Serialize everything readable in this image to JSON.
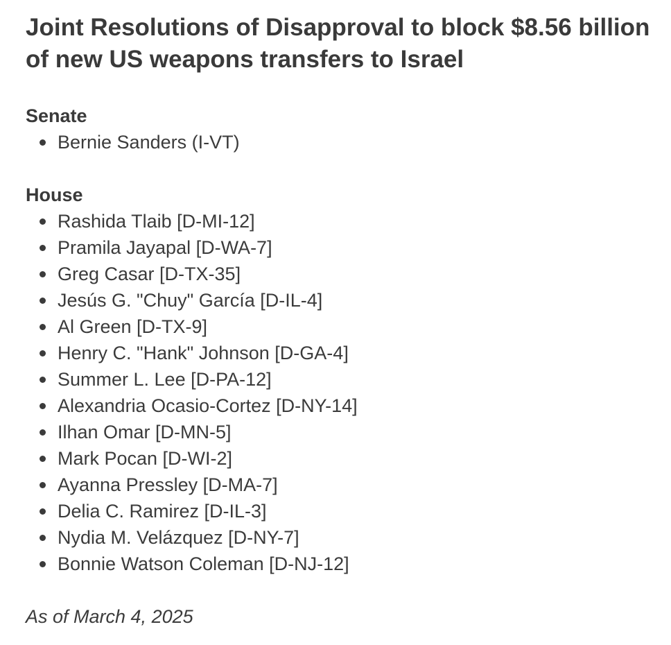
{
  "title": "Joint Resolutions of Disapproval to block $8.56 billion of new US weapons transfers to Israel",
  "sections": [
    {
      "heading": "Senate",
      "members": [
        "Bernie Sanders (I-VT)"
      ]
    },
    {
      "heading": "House",
      "members": [
        "Rashida Tlaib [D-MI-12]",
        "Pramila Jayapal [D-WA-7]",
        "Greg Casar [D-TX-35]",
        "Jesús G. \"Chuy\" García [D-IL-4]",
        "Al Green [D-TX-9]",
        "Henry C. \"Hank\" Johnson [D-GA-4]",
        "Summer L. Lee [D-PA-12]",
        "Alexandria Ocasio-Cortez [D-NY-14]",
        "Ilhan Omar [D-MN-5]",
        "Mark Pocan [D-WI-2]",
        "Ayanna Pressley [D-MA-7]",
        "Delia C. Ramirez [D-IL-3]",
        "Nydia M. Velázquez [D-NY-7]",
        "Bonnie Watson Coleman [D-NJ-12]"
      ]
    }
  ],
  "footer": "As of March 4, 2025"
}
